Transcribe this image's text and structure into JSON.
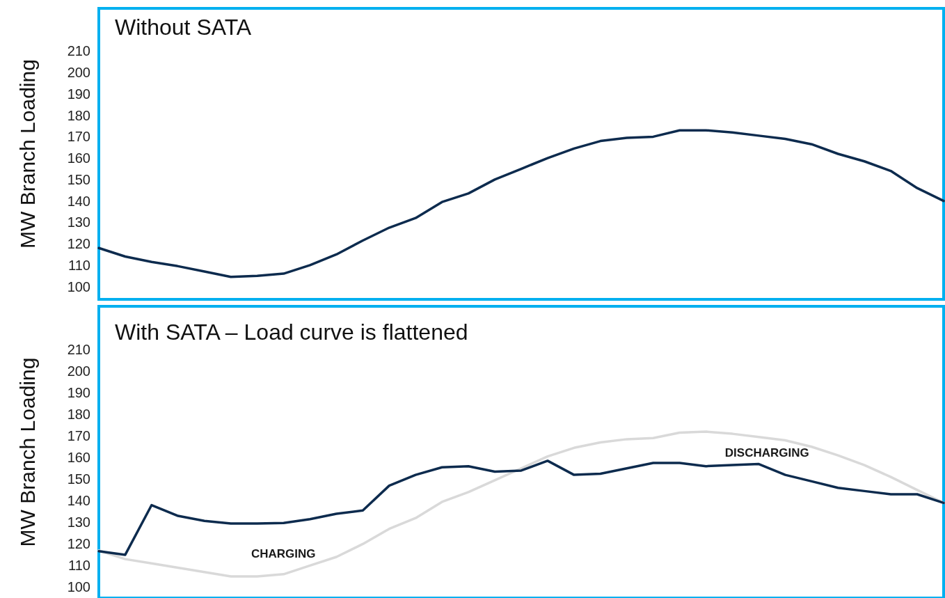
{
  "chart_data": [
    {
      "type": "line",
      "title": "Without SATA",
      "ylabel": "MW Branch Loading",
      "categories": [
        null,
        null,
        null,
        null,
        null,
        null,
        null,
        null,
        null,
        null,
        null,
        null,
        null,
        null,
        null,
        null,
        null,
        null,
        null,
        null,
        null,
        null,
        null,
        null,
        null,
        null,
        null,
        null,
        null,
        null,
        null,
        null,
        null
      ],
      "series": [
        {
          "color": "#0d2b4e",
          "values": [
            118,
            114,
            111.5,
            109.5,
            107,
            104.5,
            105,
            106,
            110,
            115,
            121.5,
            127.5,
            132,
            139.5,
            143.5,
            150,
            155,
            160,
            164.5,
            168,
            169.5,
            170,
            173,
            173,
            172,
            170.5,
            169,
            166.5,
            162,
            158.5,
            154,
            146,
            140
          ]
        }
      ],
      "ylim": [
        94,
        230
      ],
      "yticks": [
        100,
        110,
        120,
        130,
        140,
        150,
        160,
        170,
        180,
        190,
        200,
        210
      ],
      "tick_labels": "y",
      "grid": false,
      "marker": "none",
      "line_style": "solid"
    },
    {
      "type": "line",
      "title": "With SATA – Load curve is flattened",
      "ylabel": "MW Branch Loading",
      "categories": [
        null,
        null,
        null,
        null,
        null,
        null,
        null,
        null,
        null,
        null,
        null,
        null,
        null,
        null,
        null,
        null,
        null,
        null,
        null,
        null,
        null,
        null,
        null,
        null,
        null,
        null,
        null,
        null,
        null,
        null,
        null,
        null,
        null
      ],
      "series": [
        {
          "color": "#d9d9d9",
          "values": [
            117,
            113,
            111,
            109,
            107,
            105,
            105,
            106,
            110,
            114,
            120,
            127,
            132,
            139.5,
            144,
            149.5,
            155,
            160.5,
            164.5,
            167,
            168.5,
            169,
            171.5,
            172,
            171,
            169.5,
            168,
            165,
            161,
            156.5,
            151,
            145,
            139
          ]
        },
        {
          "color": "#0d2b4e",
          "values": [
            116.7,
            115,
            138,
            133,
            130.7,
            129.5,
            129.5,
            129.7,
            131.5,
            134,
            135.5,
            147,
            152,
            155.5,
            156,
            153.5,
            154,
            158.5,
            152,
            152.5,
            155,
            157.5,
            157.5,
            156,
            156.5,
            157,
            152,
            149,
            146,
            144.5,
            143,
            143,
            139
          ]
        }
      ],
      "annotations": [
        "CHARGING",
        "DISCHARGING"
      ],
      "ylim": [
        95,
        230
      ],
      "yticks": [
        100,
        110,
        120,
        130,
        140,
        150,
        160,
        170,
        180,
        190,
        200,
        210
      ],
      "tick_labels": "y",
      "grid": false,
      "marker": "none",
      "line_style": "solid"
    }
  ]
}
